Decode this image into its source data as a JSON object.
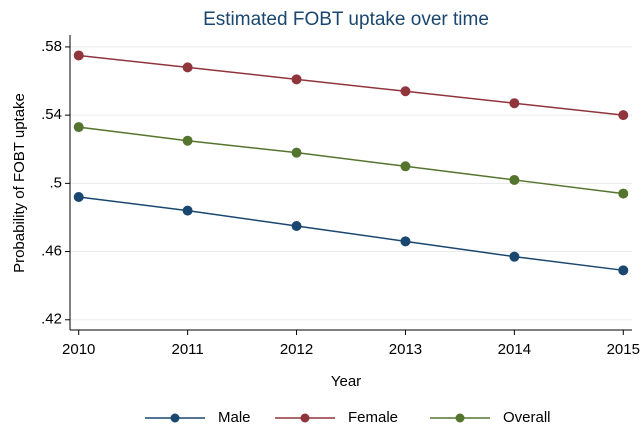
{
  "chart_data": {
    "type": "line",
    "title": "Estimated FOBT uptake over time",
    "x_label": "Year",
    "y_label": "Probability of FOBT uptake",
    "x": [
      2010,
      2011,
      2012,
      2013,
      2014,
      2015
    ],
    "series": [
      {
        "name": "Male",
        "color": "#1a476f",
        "values": [
          0.492,
          0.484,
          0.475,
          0.466,
          0.457,
          0.449
        ]
      },
      {
        "name": "Female",
        "color": "#90353b",
        "values": [
          0.575,
          0.568,
          0.561,
          0.554,
          0.547,
          0.54
        ]
      },
      {
        "name": "Overall",
        "color": "#55752f",
        "values": [
          0.533,
          0.525,
          0.518,
          0.51,
          0.502,
          0.494
        ]
      }
    ],
    "xlim": [
      2009.92,
      2015.08
    ],
    "xticks": [
      2010,
      2011,
      2012,
      2013,
      2014,
      2015
    ],
    "ylim": [
      0.414,
      0.587
    ],
    "yticks": [
      {
        "value": 0.42,
        "label": ".42"
      },
      {
        "value": 0.46,
        "label": ".46"
      },
      {
        "value": 0.5,
        "label": ".5"
      },
      {
        "value": 0.54,
        "label": ".54"
      },
      {
        "value": 0.58,
        "label": ".58"
      }
    ],
    "grid": true,
    "legend": "bottom"
  }
}
